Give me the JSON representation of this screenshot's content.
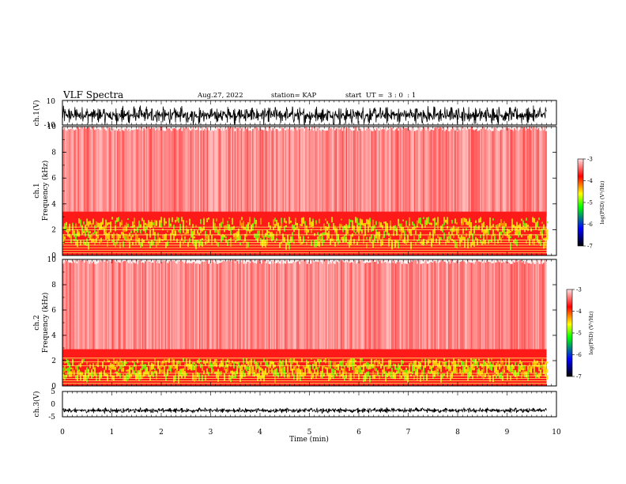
{
  "header": {
    "title": "VLF Spectra",
    "date": "Aug.27, 2022",
    "station": "station= KAP",
    "start": "start  UT =  3 : 0  : 1"
  },
  "chart_data": [
    {
      "type": "line",
      "panel": "ch1-waveform",
      "ylabel": "ch.1(V)",
      "ylim": [
        -10,
        10
      ],
      "y_ticks": [
        "10",
        "-10"
      ],
      "x_range_min": [
        0,
        9.8
      ],
      "trace_color": "#000000"
    },
    {
      "type": "heatmap",
      "panel": "ch1-spectrogram",
      "ylabel_lines": [
        "ch.1",
        "Frequency  (kHz)"
      ],
      "ylim": [
        0,
        10
      ],
      "y_ticks": [
        "0",
        "2",
        "4",
        "6",
        "8",
        "10"
      ],
      "x_range_min": [
        0,
        9.8
      ],
      "band_edge_khz": 3.4,
      "intense_band_khz": [
        1.0,
        3.0
      ],
      "narrowband_lines_khz": [
        0.2,
        0.4,
        0.6,
        0.8,
        1.0,
        1.2,
        1.6,
        2.0,
        2.2
      ],
      "colorbar": {
        "label": "log(PSD) (V²/Hz)",
        "range": [
          -7,
          -3
        ],
        "ticks": [
          "-3",
          "-4",
          "-5",
          "-6",
          "-7"
        ]
      }
    },
    {
      "type": "heatmap",
      "panel": "ch2-spectrogram",
      "ylabel_lines": [
        "ch.2",
        "Frequency  (kHz)"
      ],
      "ylim": [
        0,
        10
      ],
      "y_ticks": [
        "0",
        "2",
        "4",
        "6",
        "8",
        "10"
      ],
      "x_range_min": [
        0,
        9.8
      ],
      "band_edge_khz": 2.9,
      "intense_band_khz": [
        0.8,
        2.2
      ],
      "narrowband_lines_khz": [
        0.2,
        0.4,
        0.6,
        0.8,
        1.0,
        1.6,
        1.9,
        2.2
      ],
      "colorbar": {
        "label": "log(PSD) (V²/Hz)",
        "range": [
          -7,
          -3
        ],
        "ticks": [
          "-3",
          "-4",
          "-5",
          "-6",
          "-7"
        ]
      }
    },
    {
      "type": "line",
      "panel": "ch3-waveform",
      "ylabel": "ch.3(V)",
      "ylim": [
        -5,
        5
      ],
      "y_ticks": [
        "5",
        "0",
        "-5"
      ],
      "x_range_min": [
        0,
        9.8
      ],
      "trace_color": "#000000"
    }
  ],
  "x_axis": {
    "label": "Time  (min)",
    "range": [
      0,
      10
    ],
    "ticks": [
      "0",
      "1",
      "2",
      "3",
      "4",
      "5",
      "6",
      "7",
      "8",
      "9",
      "10"
    ]
  },
  "colors": {
    "background": "#ffffff",
    "axes": "#000000",
    "spectro_background": "#fff4f4",
    "colormap": [
      "#000000",
      "#0000ff",
      "#00ff00",
      "#ffff00",
      "#ff0000",
      "#ffffff"
    ]
  }
}
